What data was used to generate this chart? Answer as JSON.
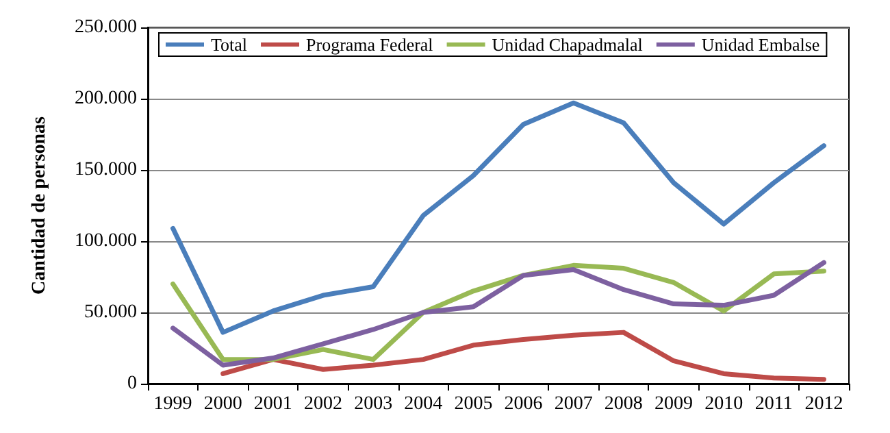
{
  "chart_data": {
    "type": "line",
    "ylabel": "Cantidad de personas",
    "categories": [
      "1999",
      "2000",
      "2001",
      "2002",
      "2003",
      "2004",
      "2005",
      "2006",
      "2007",
      "2008",
      "2009",
      "2010",
      "2011",
      "2012"
    ],
    "series": [
      {
        "name": "Total",
        "color": "#4a7ebb",
        "values": [
          109000,
          36000,
          51000,
          62000,
          68000,
          118000,
          146000,
          182000,
          197000,
          183000,
          141000,
          112000,
          141000,
          167000
        ]
      },
      {
        "name": "Programa Federal",
        "color": "#be4b48",
        "values": [
          null,
          7000,
          17000,
          10000,
          13000,
          17000,
          27000,
          31000,
          34000,
          36000,
          16000,
          7000,
          4000,
          3000
        ]
      },
      {
        "name": "Unidad Chapadmalal",
        "color": "#98b954",
        "values": [
          70000,
          17000,
          17000,
          24000,
          17000,
          50000,
          65000,
          76000,
          83000,
          81000,
          71000,
          51000,
          77000,
          79000
        ]
      },
      {
        "name": "Unidad Embalse",
        "color": "#7d60a0",
        "values": [
          39000,
          13000,
          18000,
          28000,
          38000,
          50000,
          54000,
          76000,
          80000,
          66000,
          56000,
          55000,
          62000,
          85000
        ]
      }
    ],
    "ylim": [
      0,
      250000
    ],
    "yticks": [
      0,
      {
        "value": 50000,
        "label": "50.000"
      },
      {
        "value": 100000,
        "label": "100.000"
      },
      {
        "value": 150000,
        "label": "150.000"
      },
      {
        "value": 200000,
        "label": "200.000"
      },
      {
        "value": 250000,
        "label": "250.000"
      }
    ],
    "grid": "y",
    "legend": "top",
    "marker": "none",
    "line_style": "solid"
  }
}
